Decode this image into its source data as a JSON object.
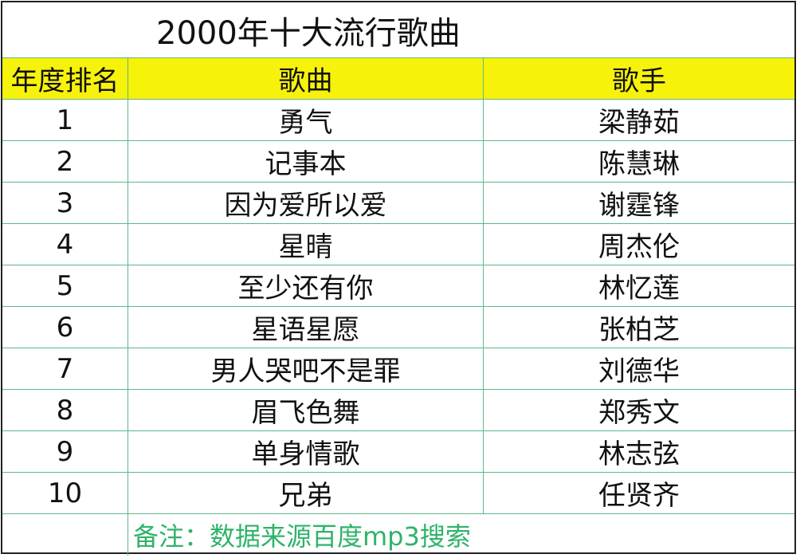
{
  "title": "2000年十大流行歌曲",
  "table": {
    "header": [
      "年度排名",
      "歌曲",
      "歌手"
    ],
    "rows": [
      [
        1,
        "勇气",
        "梁静茹"
      ],
      [
        2,
        "记事本",
        "陈慧琳"
      ],
      [
        3,
        "因为爱所以爱",
        "谢霆锋"
      ],
      [
        4,
        "星晴",
        "周杰伦"
      ],
      [
        5,
        "至少还有你",
        "林忆莲"
      ],
      [
        6,
        "星语星愿",
        "张柏芝"
      ],
      [
        7,
        "男人哭吧不是罪",
        "刘德华"
      ],
      [
        8,
        "眉飞色舞",
        "郑秀文"
      ],
      [
        9,
        "单身情歌",
        "林志弦"
      ],
      [
        10,
        "兄弟",
        "任贤齐"
      ]
    ]
  },
  "note": "备注：数据来源百度mp3搜索"
}
